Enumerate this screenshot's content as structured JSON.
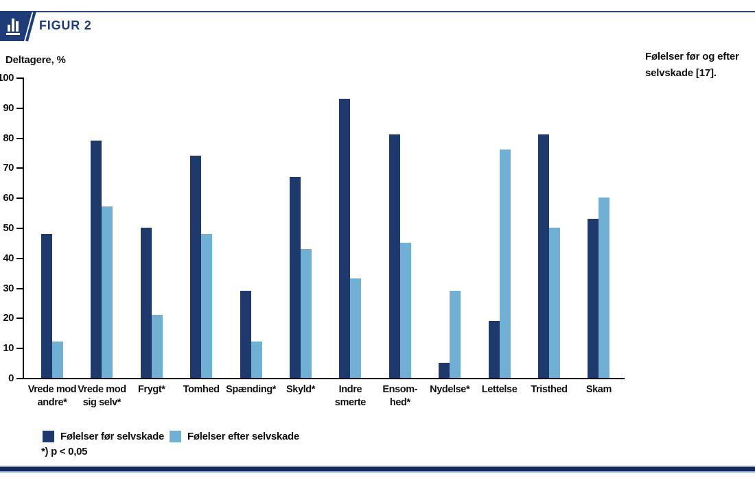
{
  "header": {
    "label": "FIGUR 2",
    "icon": "bar-chart-icon"
  },
  "caption": {
    "line1": "Følelser før og efter",
    "line2": "selvskade [17]."
  },
  "footnote": "*) p < 0,05",
  "colors": {
    "navy_header": "#1E3C7A",
    "bar_dark": "#1E3A6D",
    "bar_light": "#6FB0D4",
    "axis_black": "#000000",
    "bottom_rule": "#16285C"
  },
  "legend": [
    {
      "label": "Følelser før selvskade"
    },
    {
      "label": "Følelser efter selvskade"
    }
  ],
  "chart_data": {
    "type": "bar",
    "title": "FIGUR 2",
    "xlabel": "",
    "ylabel": "Deltagere, %",
    "ylim": [
      0,
      100
    ],
    "ytick_step": 10,
    "grid": false,
    "legend_position": "bottom",
    "categories": [
      "Vrede mod\nandre*",
      "Vrede mod\nsig selv*",
      "Frygt*",
      "Tomhed",
      "Spænding*",
      "Skyld*",
      "Indre\nsmerte",
      "Ensom-\nhed*",
      "Nydelse*",
      "Lettelse",
      "Tristhed",
      "Skam"
    ],
    "series": [
      {
        "name": "Følelser før selvskade",
        "color": "#1E3A6D",
        "values": [
          48,
          79,
          50,
          74,
          29,
          67,
          93,
          81,
          5,
          19,
          81,
          53
        ]
      },
      {
        "name": "Følelser efter selvskade",
        "color": "#6FB0D4",
        "values": [
          12,
          57,
          21,
          48,
          12,
          43,
          33,
          45,
          29,
          76,
          50,
          60
        ]
      }
    ]
  }
}
